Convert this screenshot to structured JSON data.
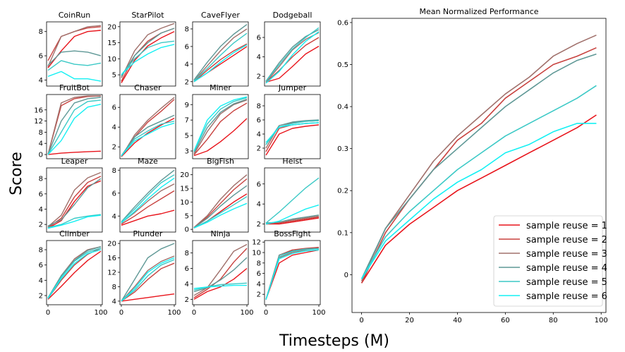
{
  "figure": {
    "ylabel": "Score",
    "xlabel": "Timesteps (M)"
  },
  "colors": {
    "sample reuse = 1": "#e8141b",
    "sample reuse = 2": "#c8423f",
    "sample reuse = 3": "#a0706b",
    "sample reuse = 4": "#5f9896",
    "sample reuse = 5": "#3cc9c6",
    "sample reuse = 6": "#14f0f3"
  },
  "chart_data": {
    "type": "line",
    "layout": "4x4 small multiples (per-game score) plus one large panel (mean normalized performance)",
    "series_names": [
      "sample reuse = 1",
      "sample reuse = 2",
      "sample reuse = 3",
      "sample reuse = 4",
      "sample reuse = 5",
      "sample reuse = 6"
    ],
    "x": [
      0,
      25,
      50,
      75,
      100
    ],
    "panels": [
      {
        "title": "CoinRun",
        "xticks": [],
        "yticks": [
          4,
          6,
          8
        ],
        "ylim": [
          3.5,
          8.8
        ],
        "series": [
          [
            5.0,
            6.4,
            7.6,
            8.0,
            8.1
          ],
          [
            5.6,
            7.6,
            8.0,
            8.3,
            8.4
          ],
          [
            5.1,
            7.6,
            8.0,
            8.4,
            8.5
          ],
          [
            5.2,
            6.3,
            6.4,
            6.3,
            6.0
          ],
          [
            4.8,
            5.6,
            5.3,
            5.2,
            5.4
          ],
          [
            4.3,
            4.7,
            4.1,
            4.1,
            3.9
          ]
        ]
      },
      {
        "title": "StarPilot",
        "xticks": [],
        "yticks": [
          5,
          10,
          15,
          20
        ],
        "ylim": [
          1.5,
          21.5
        ],
        "series": [
          [
            2.5,
            9.5,
            14.0,
            16.5,
            18.5
          ],
          [
            3.0,
            11.0,
            15.5,
            18.0,
            19.5
          ],
          [
            4.0,
            12.5,
            17.5,
            19.5,
            21.0
          ],
          [
            4.5,
            11.0,
            15.0,
            18.0,
            19.5
          ],
          [
            5.0,
            10.0,
            13.5,
            15.0,
            15.5
          ],
          [
            5.0,
            9.0,
            11.5,
            13.5,
            14.5
          ]
        ]
      },
      {
        "title": "CaveFlyer",
        "xticks": [],
        "yticks": [
          2,
          4,
          6,
          8
        ],
        "ylim": [
          1.5,
          8.8
        ],
        "series": [
          [
            2.0,
            3.0,
            4.0,
            5.0,
            6.0
          ],
          [
            2.0,
            3.3,
            4.5,
            5.5,
            6.3
          ],
          [
            2.1,
            3.8,
            5.5,
            7.0,
            8.0
          ],
          [
            2.2,
            4.2,
            6.0,
            7.4,
            8.5
          ],
          [
            2.1,
            3.5,
            5.0,
            6.4,
            7.5
          ],
          [
            2.0,
            3.0,
            4.2,
            5.3,
            6.2
          ]
        ]
      },
      {
        "title": "Dodgeball",
        "xticks": [],
        "yticks": [
          2,
          4,
          6
        ],
        "ylim": [
          1.0,
          7.6
        ],
        "series": [
          [
            1.4,
            1.8,
            3.0,
            4.3,
            5.1
          ],
          [
            1.4,
            2.6,
            4.0,
            5.2,
            6.0
          ],
          [
            1.4,
            3.0,
            4.7,
            5.8,
            6.5
          ],
          [
            1.5,
            3.4,
            5.0,
            6.1,
            6.8
          ],
          [
            1.5,
            3.2,
            4.8,
            6.0,
            7.0
          ],
          [
            1.3,
            2.5,
            4.2,
            5.6,
            6.6
          ]
        ]
      },
      {
        "title": "FruitBot",
        "xticks": [],
        "yticks": [
          0,
          4,
          8,
          12,
          16
        ],
        "ylim": [
          -1.5,
          21.5
        ],
        "series": [
          [
            0.0,
            0.5,
            0.8,
            1.0,
            1.2
          ],
          [
            0.0,
            17.5,
            20.0,
            20.8,
            21.0
          ],
          [
            0.0,
            18.5,
            20.5,
            21.0,
            21.0
          ],
          [
            0.0,
            12.0,
            18.5,
            20.0,
            20.5
          ],
          [
            0.0,
            8.0,
            16.0,
            19.0,
            19.5
          ],
          [
            0.0,
            5.0,
            13.0,
            17.0,
            18.0
          ]
        ]
      },
      {
        "title": "Chaser",
        "xticks": [],
        "yticks": [
          2,
          4,
          6
        ],
        "ylim": [
          0.8,
          7.3
        ],
        "series": [
          [
            1.0,
            2.4,
            3.4,
            4.2,
            4.9
          ],
          [
            1.0,
            3.0,
            4.5,
            5.6,
            6.8
          ],
          [
            1.0,
            3.2,
            4.7,
            5.9,
            7.0
          ],
          [
            1.1,
            3.0,
            4.0,
            4.6,
            5.2
          ],
          [
            1.1,
            2.8,
            3.6,
            4.3,
            4.6
          ],
          [
            1.1,
            2.6,
            3.3,
            4.0,
            4.4
          ]
        ]
      },
      {
        "title": "Miner",
        "xticks": [],
        "yticks": [
          3,
          5,
          7,
          9
        ],
        "ylim": [
          2.0,
          10.3
        ],
        "series": [
          [
            2.4,
            3.0,
            4.2,
            5.6,
            7.2
          ],
          [
            2.5,
            4.5,
            6.8,
            8.2,
            9.2
          ],
          [
            2.6,
            5.5,
            7.8,
            9.0,
            9.6
          ],
          [
            2.8,
            6.0,
            8.0,
            9.1,
            9.7
          ],
          [
            3.0,
            6.5,
            8.4,
            9.4,
            9.9
          ],
          [
            3.0,
            7.0,
            8.8,
            9.6,
            10.0
          ]
        ]
      },
      {
        "title": "Jumper",
        "xticks": [],
        "yticks": [
          2,
          4,
          6,
          8
        ],
        "ylim": [
          0.5,
          9.6
        ],
        "series": [
          [
            1.0,
            4.0,
            4.8,
            5.1,
            5.3
          ],
          [
            1.5,
            4.8,
            5.3,
            5.5,
            5.6
          ],
          [
            2.0,
            5.2,
            5.6,
            5.8,
            5.9
          ],
          [
            2.5,
            5.2,
            5.7,
            5.9,
            6.0
          ],
          [
            2.5,
            5.0,
            5.5,
            5.8,
            5.9
          ],
          [
            2.8,
            5.0,
            5.3,
            5.5,
            5.6
          ]
        ]
      },
      {
        "title": "Leaper",
        "xticks": [],
        "yticks": [
          2,
          4,
          6,
          8
        ],
        "ylim": [
          1.0,
          9.4
        ],
        "series": [
          [
            1.5,
            2.5,
            5.0,
            7.0,
            7.7
          ],
          [
            1.6,
            2.8,
            5.6,
            7.5,
            8.3
          ],
          [
            1.7,
            3.2,
            6.5,
            8.1,
            8.8
          ],
          [
            1.8,
            2.6,
            4.6,
            6.8,
            8.0
          ],
          [
            1.6,
            2.0,
            2.8,
            3.1,
            3.3
          ],
          [
            1.5,
            1.9,
            2.4,
            3.0,
            3.2
          ]
        ]
      },
      {
        "title": "Maze",
        "xticks": [],
        "yticks": [
          4,
          6,
          8
        ],
        "ylim": [
          2.6,
          8.2
        ],
        "series": [
          [
            3.2,
            3.6,
            4.0,
            4.2,
            4.5
          ],
          [
            3.3,
            4.0,
            4.8,
            5.5,
            6.2
          ],
          [
            3.4,
            4.3,
            5.3,
            6.2,
            6.8
          ],
          [
            3.5,
            4.8,
            6.0,
            7.1,
            8.0
          ],
          [
            3.5,
            4.6,
            5.8,
            6.9,
            7.6
          ],
          [
            3.4,
            4.4,
            5.5,
            6.5,
            7.3
          ]
        ]
      },
      {
        "title": "BigFish",
        "xticks": [],
        "yticks": [
          0,
          5,
          10,
          15,
          20
        ],
        "ylim": [
          -1.0,
          22.5
        ],
        "series": [
          [
            0.5,
            3.0,
            6.5,
            10.0,
            13.0
          ],
          [
            0.6,
            4.5,
            9.5,
            14.5,
            18.5
          ],
          [
            0.7,
            5.0,
            11.0,
            16.0,
            20.0
          ],
          [
            0.6,
            4.0,
            8.5,
            12.5,
            16.0
          ],
          [
            0.5,
            3.0,
            6.0,
            9.0,
            12.0
          ],
          [
            0.5,
            2.6,
            5.2,
            7.5,
            9.5
          ]
        ]
      },
      {
        "title": "Heist",
        "xticks": [],
        "yticks": [
          2,
          4,
          6
        ],
        "ylim": [
          1.2,
          7.6
        ],
        "series": [
          [
            2.0,
            2.0,
            2.2,
            2.4,
            2.6
          ],
          [
            2.0,
            2.1,
            2.3,
            2.5,
            2.7
          ],
          [
            2.1,
            2.2,
            2.4,
            2.6,
            2.8
          ],
          [
            2.1,
            2.2,
            2.5,
            2.7,
            2.9
          ],
          [
            2.1,
            3.2,
            4.4,
            5.6,
            6.6
          ],
          [
            2.0,
            2.3,
            2.9,
            3.5,
            3.9
          ]
        ]
      },
      {
        "title": "Climber",
        "xticks": [
          0,
          100
        ],
        "yticks": [
          2,
          4,
          6,
          8
        ],
        "ylim": [
          0.8,
          9.2
        ],
        "series": [
          [
            1.5,
            3.2,
            5.0,
            6.6,
            7.8
          ],
          [
            1.6,
            4.0,
            6.0,
            7.4,
            8.2
          ],
          [
            1.7,
            4.6,
            6.8,
            8.0,
            8.4
          ],
          [
            1.7,
            4.6,
            6.6,
            7.9,
            8.4
          ],
          [
            1.7,
            4.4,
            6.5,
            7.7,
            8.2
          ],
          [
            1.6,
            4.2,
            6.2,
            7.5,
            8.0
          ]
        ]
      },
      {
        "title": "Plunder",
        "xticks": [
          0,
          100
        ],
        "yticks": [
          4,
          8,
          12,
          16,
          20
        ],
        "ylim": [
          3.0,
          20.8
        ],
        "series": [
          [
            4.0,
            4.5,
            5.0,
            5.5,
            6.0
          ],
          [
            4.0,
            6.5,
            10.0,
            13.0,
            14.5
          ],
          [
            4.0,
            8.0,
            12.5,
            15.0,
            16.5
          ],
          [
            4.0,
            10.0,
            16.0,
            18.5,
            20.0
          ],
          [
            4.0,
            7.0,
            11.0,
            14.0,
            15.5
          ],
          [
            4.0,
            7.5,
            12.0,
            14.5,
            16.0
          ]
        ]
      },
      {
        "title": "Ninja",
        "xticks": [
          0,
          100
        ],
        "yticks": [
          2,
          4,
          6,
          8
        ],
        "ylim": [
          1.3,
          9.6
        ],
        "series": [
          [
            2.0,
            3.0,
            3.6,
            4.6,
            6.0
          ],
          [
            2.2,
            3.3,
            4.6,
            6.8,
            8.6
          ],
          [
            2.5,
            3.5,
            5.8,
            8.2,
            9.1
          ],
          [
            3.0,
            3.5,
            4.5,
            5.8,
            7.4
          ],
          [
            3.2,
            3.6,
            3.9,
            4.0,
            4.1
          ],
          [
            3.4,
            3.6,
            3.7,
            3.8,
            3.8
          ]
        ]
      },
      {
        "title": "BossFight",
        "xticks": [
          0,
          100
        ],
        "yticks": [
          2,
          4,
          6,
          8,
          10,
          12
        ],
        "ylim": [
          0.0,
          12.3
        ],
        "series": [
          [
            1.0,
            8.0,
            9.5,
            10.0,
            10.5
          ],
          [
            1.0,
            9.5,
            10.5,
            10.8,
            11.0
          ],
          [
            1.0,
            9.0,
            10.0,
            10.5,
            10.8
          ],
          [
            1.0,
            9.5,
            10.3,
            10.7,
            10.8
          ],
          [
            1.0,
            9.2,
            10.2,
            10.6,
            10.7
          ],
          [
            1.0,
            8.8,
            9.8,
            10.3,
            10.5
          ]
        ]
      }
    ],
    "main": {
      "title": "Mean Normalized Performance",
      "x": [
        0,
        10,
        20,
        30,
        40,
        50,
        60,
        70,
        80,
        90,
        98
      ],
      "xticks": [
        0,
        20,
        40,
        60,
        80,
        100
      ],
      "yticks": [
        0.0,
        0.1,
        0.2,
        0.3,
        0.4,
        0.5,
        0.6
      ],
      "xlim": [
        -4,
        102
      ],
      "ylim": [
        -0.09,
        0.61
      ],
      "legend_position": "lower right",
      "series": [
        {
          "name": "sample reuse = 1",
          "values": [
            -0.02,
            0.07,
            0.12,
            0.16,
            0.2,
            0.23,
            0.26,
            0.29,
            0.32,
            0.35,
            0.38
          ]
        },
        {
          "name": "sample reuse = 2",
          "values": [
            -0.02,
            0.1,
            0.18,
            0.25,
            0.32,
            0.36,
            0.42,
            0.46,
            0.5,
            0.52,
            0.54
          ]
        },
        {
          "name": "sample reuse = 3",
          "values": [
            -0.015,
            0.11,
            0.19,
            0.27,
            0.33,
            0.38,
            0.43,
            0.47,
            0.52,
            0.55,
            0.57
          ]
        },
        {
          "name": "sample reuse = 4",
          "values": [
            -0.01,
            0.11,
            0.18,
            0.25,
            0.3,
            0.35,
            0.4,
            0.44,
            0.48,
            0.51,
            0.525
          ]
        },
        {
          "name": "sample reuse = 5",
          "values": [
            -0.01,
            0.09,
            0.15,
            0.2,
            0.25,
            0.29,
            0.33,
            0.36,
            0.39,
            0.42,
            0.45
          ]
        },
        {
          "name": "sample reuse = 6",
          "values": [
            -0.01,
            0.08,
            0.13,
            0.18,
            0.22,
            0.25,
            0.29,
            0.31,
            0.34,
            0.36,
            0.36
          ]
        }
      ]
    }
  }
}
